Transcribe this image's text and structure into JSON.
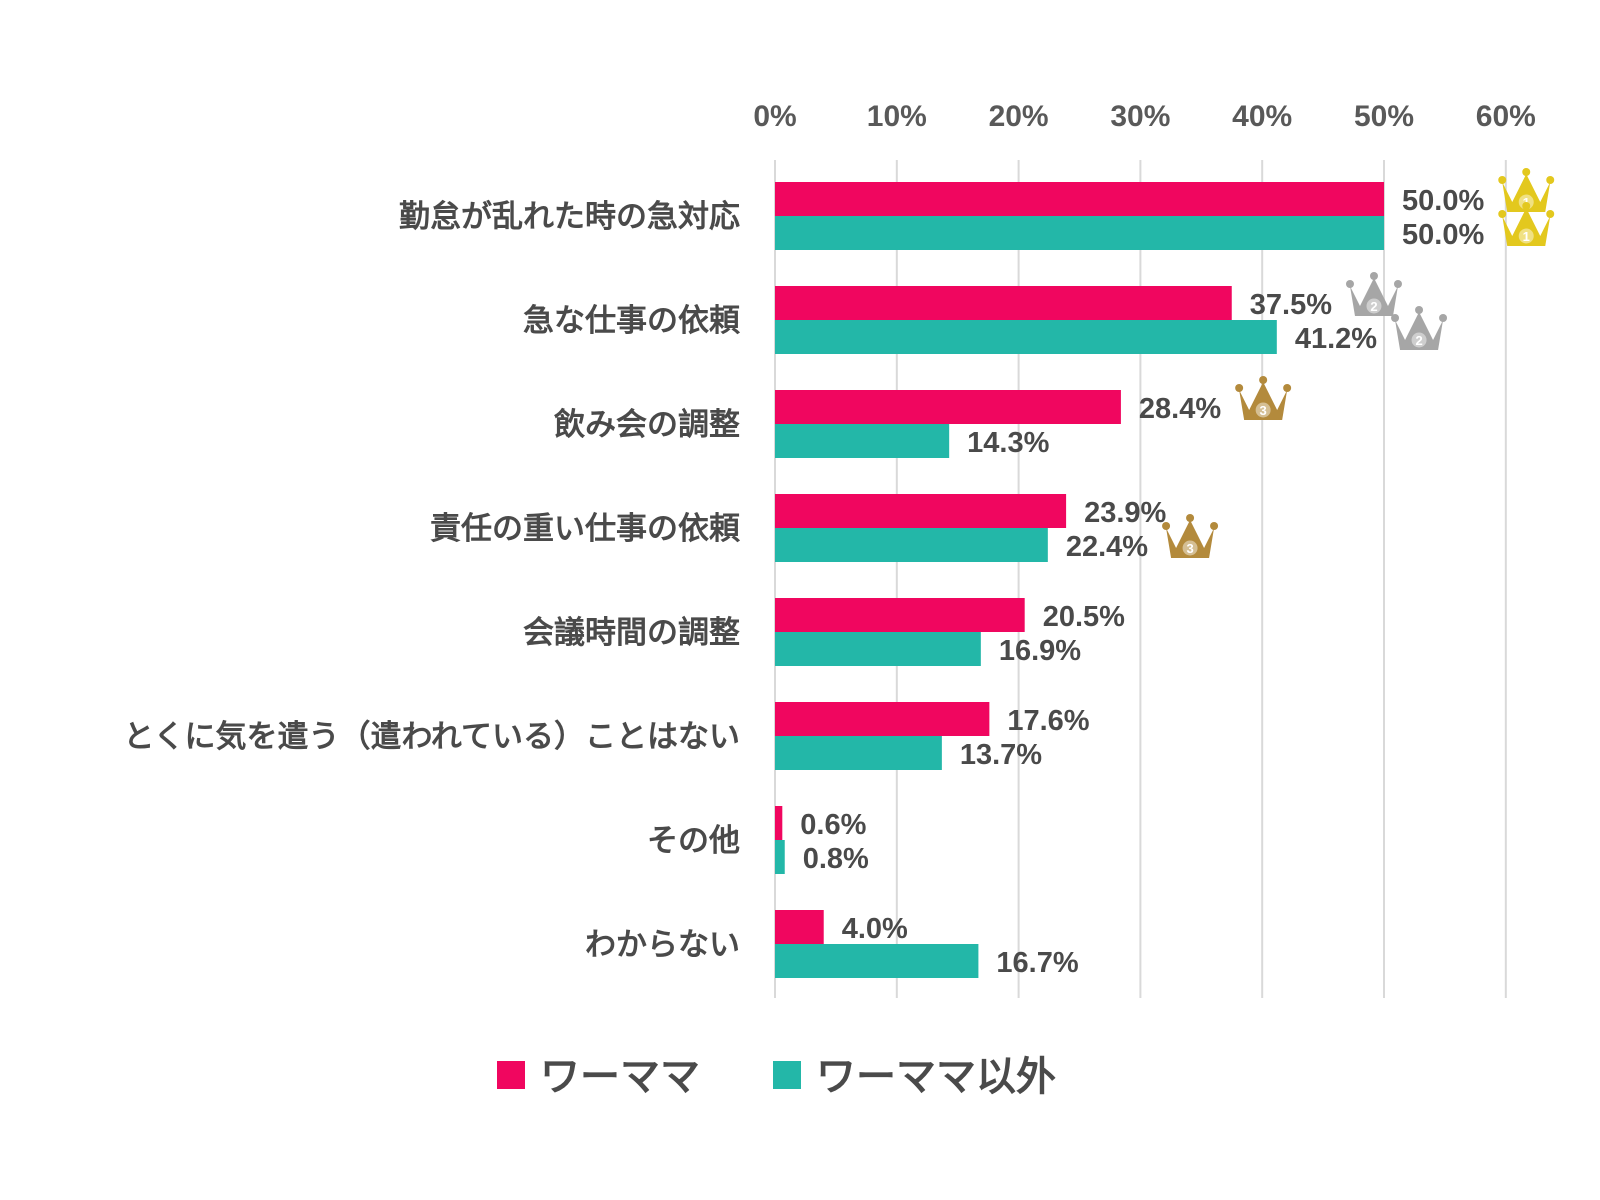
{
  "chart_data": {
    "type": "bar",
    "orientation": "horizontal",
    "categories": [
      "勤怠が乱れた時の急対応",
      "急な仕事の依頼",
      "飲み会の調整",
      "責任の重い仕事の依頼",
      "会議時間の調整",
      "とくに気を遣う（遣われている）ことはない",
      "その他",
      "わからない"
    ],
    "series": [
      {
        "name": "ワーママ",
        "color": "#f0065f",
        "values": [
          50.0,
          37.5,
          28.4,
          23.9,
          20.5,
          17.6,
          0.6,
          4.0
        ],
        "labels": [
          "50.0%",
          "37.5%",
          "28.4%",
          "23.9%",
          "20.5%",
          "17.6%",
          "0.6%",
          "4.0%"
        ],
        "ranks": [
          1,
          2,
          3,
          null,
          null,
          null,
          null,
          null
        ]
      },
      {
        "name": "ワーママ以外",
        "color": "#23b7a8",
        "values": [
          50.0,
          41.2,
          14.3,
          22.4,
          16.9,
          13.7,
          0.8,
          16.7
        ],
        "labels": [
          "50.0%",
          "41.2%",
          "14.3%",
          "22.4%",
          "16.9%",
          "13.7%",
          "0.8%",
          "16.7%"
        ],
        "ranks": [
          1,
          2,
          null,
          3,
          null,
          null,
          null,
          null
        ]
      }
    ],
    "xlim": [
      0,
      60
    ],
    "xticks": [
      0,
      10,
      20,
      30,
      40,
      50,
      60
    ],
    "xtick_labels": [
      "0%",
      "10%",
      "20%",
      "30%",
      "40%",
      "50%",
      "60%"
    ],
    "axis_position": "top",
    "grid": true,
    "legend": "bottom",
    "rank_icons": {
      "1": {
        "icon": "gold-crown-icon",
        "color": "#e3c81e"
      },
      "2": {
        "icon": "silver-crown-icon",
        "color": "#a6a6a6"
      },
      "3": {
        "icon": "bronze-crown-icon",
        "color": "#b38a3c"
      }
    }
  }
}
